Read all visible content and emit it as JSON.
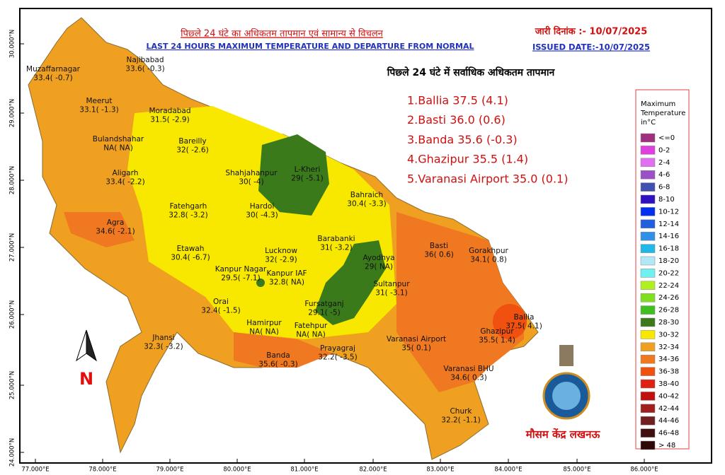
{
  "header": {
    "title_hindi": "पिछ्ले 24 घंटे का अधिकतम तापमान एवं सामान्य से विचलन",
    "title_english": "LAST 24 HOURS MAXIMUM TEMPERATURE AND DEPARTURE FROM NORMAL",
    "date_hindi": "जारी दिनांक :-  10/07/2025",
    "date_english": "ISSUED DATE:-10/07/2025"
  },
  "top_list": {
    "title": "पिछ्ले 24 घंटे में सर्वाधिक अधिकतम तापमान",
    "items": [
      "1.Ballia 37.5 (4.1)",
      "2.Basti 36.0 (0.6)",
      "3.Banda 35.6 (-0.3)",
      "4.Ghazipur 35.5 (1.4)",
      "5.Varanasi Airport 35.0 (0.1)"
    ]
  },
  "legend": {
    "title": [
      "Maximum",
      "Temperature",
      "in°C"
    ],
    "items": [
      {
        "label": "<=0",
        "color": "#a0307f"
      },
      {
        "label": "0-2",
        "color": "#e040e0"
      },
      {
        "label": "2-4",
        "color": "#e070f0"
      },
      {
        "label": "4-6",
        "color": "#9a50c8"
      },
      {
        "label": "6-8",
        "color": "#4050b0"
      },
      {
        "label": "8-10",
        "color": "#3010c0"
      },
      {
        "label": "10-12",
        "color": "#0030f0"
      },
      {
        "label": "12-14",
        "color": "#2060e0"
      },
      {
        "label": "14-16",
        "color": "#3090e8"
      },
      {
        "label": "16-18",
        "color": "#20b8e8"
      },
      {
        "label": "18-20",
        "color": "#b0e8f8"
      },
      {
        "label": "20-22",
        "color": "#70f0f0"
      },
      {
        "label": "22-24",
        "color": "#b0f020"
      },
      {
        "label": "24-26",
        "color": "#80e020"
      },
      {
        "label": "26-28",
        "color": "#40c020"
      },
      {
        "label": "28-30",
        "color": "#3a7a1a"
      },
      {
        "label": "30-32",
        "color": "#f8e800"
      },
      {
        "label": "32-34",
        "color": "#f0a020"
      },
      {
        "label": "34-36",
        "color": "#f07820"
      },
      {
        "label": "36-38",
        "color": "#f05010"
      },
      {
        "label": "38-40",
        "color": "#e02010"
      },
      {
        "label": "40-42",
        "color": "#c01010"
      },
      {
        "label": "42-44",
        "color": "#a02020"
      },
      {
        "label": "44-46",
        "color": "#702020"
      },
      {
        "label": "46-48",
        "color": "#401010"
      },
      {
        "label": "> 48",
        "color": "#300808"
      }
    ]
  },
  "map": {
    "lon_labels": [
      "77.000°E",
      "78.000°E",
      "79.000°E",
      "80.000°E",
      "81.000°E",
      "82.000°E",
      "83.000°E",
      "84.000°E",
      "85.000°E",
      "86.000°E"
    ],
    "lat_labels": [
      "30.000°N",
      "29.000°N",
      "28.000°N",
      "27.000°N",
      "26.000°N",
      "25.000°N",
      "24.000°N"
    ],
    "north": "N",
    "office": "मौसम केंद्र लखनऊ",
    "stations": [
      {
        "name": "Najibabad",
        "value": "33.6( -0.3)"
      },
      {
        "name": "Muzaffarnagar",
        "value": "33.4( -0.7)"
      },
      {
        "name": "Meerut",
        "value": "33.1( -1.3)"
      },
      {
        "name": "Moradabad",
        "value": "31.5( -2.9)"
      },
      {
        "name": "Bulandshahar",
        "value": "NA( NA)"
      },
      {
        "name": "Bareilly",
        "value": "32( -2.6)"
      },
      {
        "name": "Shahjahanpur",
        "value": "30( -4)"
      },
      {
        "name": "L-Kheri",
        "value": "29( -5.1)"
      },
      {
        "name": "Aligarh",
        "value": "33.4( -2.2)"
      },
      {
        "name": "Bahraich",
        "value": "30.4( -3.3)"
      },
      {
        "name": "Fatehgarh",
        "value": "32.8( -3.2)"
      },
      {
        "name": "Hardoi",
        "value": "30( -4.3)"
      },
      {
        "name": "Agra",
        "value": "34.6( -2.1)"
      },
      {
        "name": "Barabanki",
        "value": "31( -3.2)"
      },
      {
        "name": "Basti",
        "value": "36( 0.6)"
      },
      {
        "name": "Gorakhpur",
        "value": "34.1( 0.8)"
      },
      {
        "name": "Etawah",
        "value": "30.4( -6.7)"
      },
      {
        "name": "Lucknow",
        "value": "32( -2.9)"
      },
      {
        "name": "Ayodhya",
        "value": "29( NA)"
      },
      {
        "name": "Kanpur Nagar",
        "value": "29.5( -7.1)"
      },
      {
        "name": "Kanpur IAF",
        "value": "32.8( NA)"
      },
      {
        "name": "Sultanpur",
        "value": "31( -3.1)"
      },
      {
        "name": "Orai",
        "value": "32.4( -1.5)"
      },
      {
        "name": "Fursatganj",
        "value": "29.1( -5)"
      },
      {
        "name": "Ballia",
        "value": "37.5( 4.1)"
      },
      {
        "name": "Hamirpur",
        "value": "NA( NA)"
      },
      {
        "name": "Fatehpur",
        "value": "NA( NA)"
      },
      {
        "name": "Ghazipur",
        "value": "35.5( 1.4)"
      },
      {
        "name": "Jhansi",
        "value": "32.3( -3.2)"
      },
      {
        "name": "Varanasi Airport",
        "value": "35( 0.1)"
      },
      {
        "name": "Prayagraj",
        "value": "32.2( -3.5)"
      },
      {
        "name": "Banda",
        "value": "35.6( -0.3)"
      },
      {
        "name": "Varanasi BHU",
        "value": "34.6( 0.3)"
      },
      {
        "name": "Churk",
        "value": "32.2( -1.1)"
      }
    ]
  }
}
